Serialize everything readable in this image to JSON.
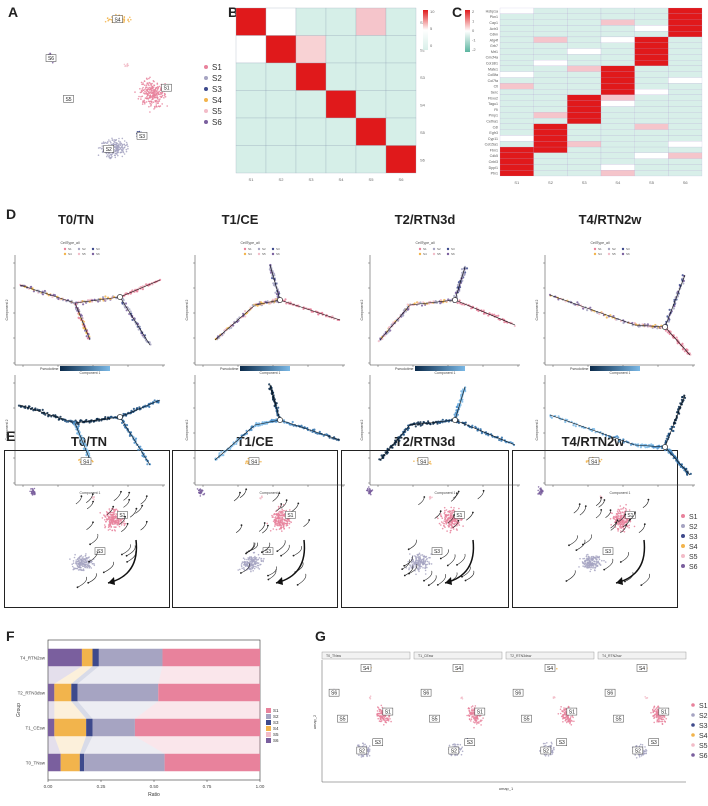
{
  "panels": {
    "a": "A",
    "b": "B",
    "c": "C",
    "d": "D",
    "e": "E",
    "f": "F",
    "g": "G"
  },
  "colors": {
    "S1": "#e8829c",
    "S2": "#a6a4c2",
    "S3": "#3e4a8c",
    "S4": "#f2b44c",
    "S5": "#f2bcc8",
    "S6": "#7a5f9e",
    "heat_high": "#e0191b",
    "heat_low": "#d8efe9",
    "heat_mid": "#ffffff"
  },
  "clusters": [
    "S1",
    "S2",
    "S3",
    "S4",
    "S5",
    "S6"
  ],
  "cluster_labels_umap": [
    "S1",
    "S2",
    "S3",
    "S4",
    "S5",
    "S6"
  ],
  "groups": [
    "T0/TN",
    "T1/CE",
    "T2/RTN3d",
    "T4/RTN2w"
  ],
  "heatmap_b": {
    "row_labels": [
      "S1",
      "S2",
      "S3",
      "S4",
      "S5",
      "S6"
    ],
    "col_labels": [
      "S1",
      "S2",
      "S3",
      "S4",
      "S5",
      "S6"
    ],
    "legend_ticks": [
      "10",
      "5",
      "0"
    ]
  },
  "heatmap_c": {
    "genes": [
      "Hsbp1a",
      "Pkn1",
      "Cap1",
      "Actr3",
      "Cdkn",
      "Atg4f",
      "Grb7",
      "Mrt1",
      "Cmcf4a",
      "Col18l1",
      "Mate1",
      "Col5fa",
      "Col7fa",
      "Ctl",
      "Serc",
      "Fbxo2",
      "Tagu1",
      "Fli",
      "Pmp1",
      "Cetha1",
      "Cdl",
      "Egfr3",
      "Cyp11",
      "Col15a1",
      "Fbn1",
      "Cdk5",
      "Cnbl3",
      "Dppl1",
      "Ptn1"
    ],
    "col_labels": [
      "S1",
      "S2",
      "S3",
      "S4",
      "S5",
      "S6"
    ],
    "legend_ticks": [
      "2",
      "1",
      "0",
      "-1",
      "-2"
    ]
  },
  "trajectory": {
    "state_legend_title": "CellType_all",
    "pseudotime_label": "Pseudotime",
    "x_axis": "Component 1",
    "y_axis": "Component 2"
  },
  "stacked_bar": {
    "type": "bar",
    "categories": [
      "T0_TNsw",
      "T1_CEsw",
      "T2_RTN3dsw",
      "T4_RTN2sw"
    ],
    "category_labels": [
      "T0_TNsw",
      "T1_CEsw",
      "T2_RTN3dsw",
      "T4_RTN2sw"
    ],
    "series": [
      {
        "name": "S6",
        "values": [
          0.06,
          0.03,
          0.03,
          0.16
        ]
      },
      {
        "name": "S4",
        "values": [
          0.09,
          0.15,
          0.08,
          0.05
        ]
      },
      {
        "name": "S3",
        "values": [
          0.02,
          0.03,
          0.03,
          0.03
        ]
      },
      {
        "name": "S2",
        "values": [
          0.38,
          0.2,
          0.38,
          0.3
        ]
      },
      {
        "name": "S1",
        "values": [
          0.45,
          0.59,
          0.48,
          0.46
        ]
      }
    ],
    "ylabel": "Group",
    "xlabel": "Ratio",
    "xticks": [
      "0.00",
      "0.25",
      "0.50",
      "0.75",
      "1.00"
    ],
    "legend": [
      "S1",
      "S2",
      "S3",
      "S4",
      "S5",
      "S6"
    ]
  },
  "umap_split": {
    "facets": [
      "T0_TNsw",
      "T1_CEsw",
      "T2_RTN3dsw",
      "T4_RTN2sw"
    ],
    "xlabel": "umap_1",
    "ylabel": "umap_2"
  }
}
